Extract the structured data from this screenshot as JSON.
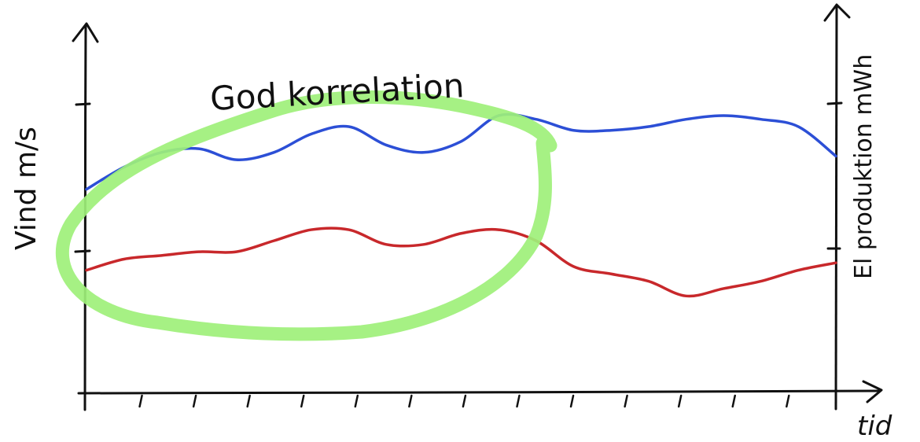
{
  "chart_data": {
    "type": "line",
    "title": "",
    "xlabel": "tid",
    "ylabel_left": "Vind m/s",
    "ylabel_right": "El produktion mWh",
    "annotation": "God korrelation",
    "grid": false,
    "x": [
      0,
      1,
      2,
      3,
      4,
      5,
      6,
      7,
      8,
      9,
      10,
      11,
      12,
      13,
      14,
      15,
      16,
      17,
      18,
      19,
      20
    ],
    "xlim": [
      0,
      20
    ],
    "ylim": [
      0,
      10
    ],
    "series": [
      {
        "color": "#2c4fd6",
        "values": [
          5.5,
          6.1,
          6.5,
          6.6,
          6.3,
          6.5,
          7.0,
          7.2,
          6.7,
          6.5,
          6.8,
          7.5,
          7.4,
          7.1,
          7.1,
          7.2,
          7.4,
          7.5,
          7.4,
          7.2,
          6.4
        ]
      },
      {
        "color": "#c8282b",
        "values": [
          3.3,
          3.6,
          3.7,
          3.8,
          3.8,
          4.1,
          4.4,
          4.4,
          4.0,
          4.0,
          4.3,
          4.4,
          4.1,
          3.4,
          3.2,
          3.0,
          2.6,
          2.8,
          3.0,
          3.3,
          3.5
        ]
      }
    ],
    "highlight_color": "#9ef07a",
    "line_color": "#111111"
  }
}
